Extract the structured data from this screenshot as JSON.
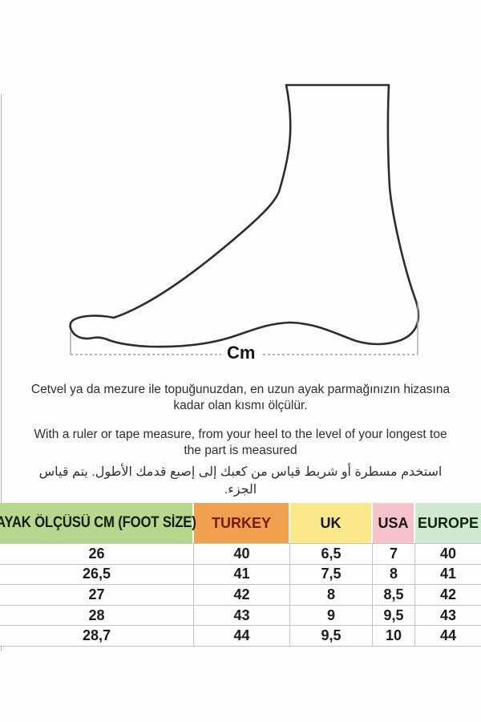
{
  "foot_diagram": {
    "unit_label": "Cm",
    "outline_color": "#2d2d2d",
    "guide_color": "#a6a6a6"
  },
  "instructions": {
    "turkish": "Cetvel ya da mezure ile topuğunuzdan, en uzun ayak parmağınızın hizasına kadar olan kısmı ölçülür.",
    "english": "With a ruler or tape measure, from your heel to the level of your longest toe the part is measured",
    "arabic": "استخدم مسطرة أو شريط قياس من كعبك إلى إصبع قدمك الأطول.  يتم قياس الجزء."
  },
  "size_table": {
    "headers": [
      {
        "label": "AYAK ÖLÇÜSÜ CM (FOOT SİZE)",
        "bg": "#b6d78d",
        "fg": "#141d0e"
      },
      {
        "label": "TURKEY",
        "bg": "#f1a04d",
        "fg": "#76190e"
      },
      {
        "label": "UK",
        "bg": "#fbe88b",
        "fg": "#161616"
      },
      {
        "label": "USA",
        "bg": "#f6c2cb",
        "fg": "#161616"
      },
      {
        "label": "EUROPE",
        "bg": "#cfe8d2",
        "fg": "#12250f"
      }
    ],
    "rows": [
      [
        "26",
        "40",
        "6,5",
        "7",
        "40"
      ],
      [
        "26,5",
        "41",
        "7,5",
        "8",
        "41"
      ],
      [
        "27",
        "42",
        "8",
        "8,5",
        "42"
      ],
      [
        "28",
        "43",
        "9",
        "9,5",
        "43"
      ],
      [
        "28,7",
        "44",
        "9,5",
        "10",
        "44"
      ]
    ]
  }
}
